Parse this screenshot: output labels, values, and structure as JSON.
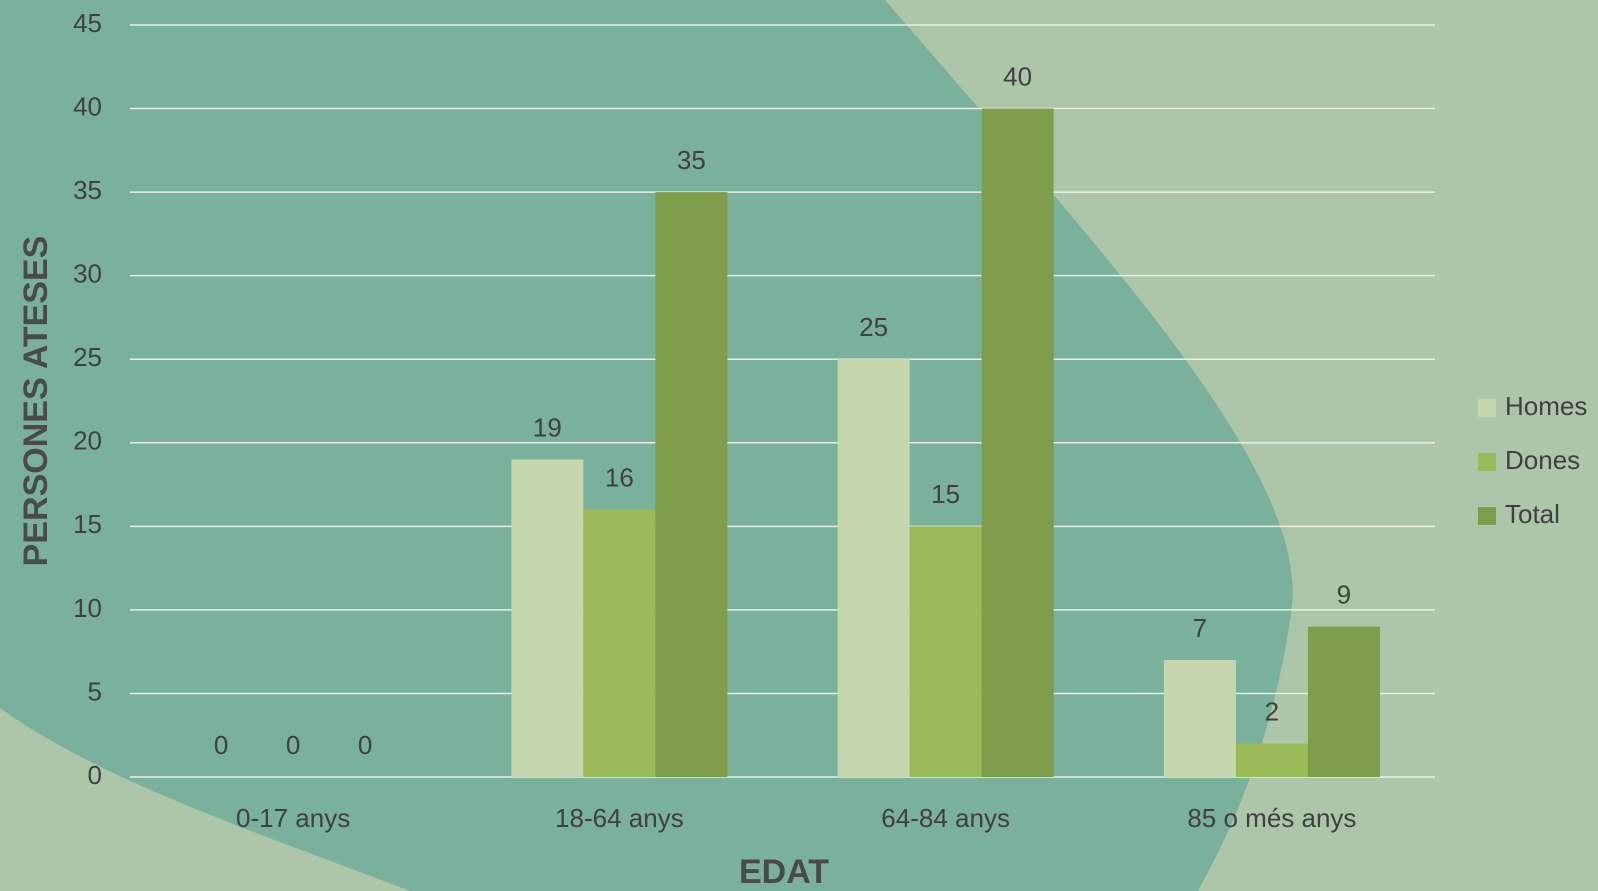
{
  "chart_data": {
    "type": "bar",
    "categories": [
      "0-17 anys",
      "18-64 anys",
      "64-84 anys",
      "85 o més anys"
    ],
    "series": [
      {
        "name": "Homes",
        "color": "#c6d7ae",
        "values": [
          0,
          19,
          25,
          7
        ]
      },
      {
        "name": "Dones",
        "color": "#9bbb59",
        "values": [
          0,
          16,
          15,
          2
        ]
      },
      {
        "name": "Total",
        "color": "#7f9c4a",
        "values": [
          0,
          35,
          40,
          9
        ]
      }
    ],
    "xlabel": "EDAT",
    "ylabel": "PERSONES ATESES",
    "ylim": [
      0,
      45
    ],
    "yticks": [
      0,
      5,
      10,
      15,
      20,
      25,
      30,
      35,
      40,
      45
    ],
    "grid": true,
    "legend": "right"
  }
}
